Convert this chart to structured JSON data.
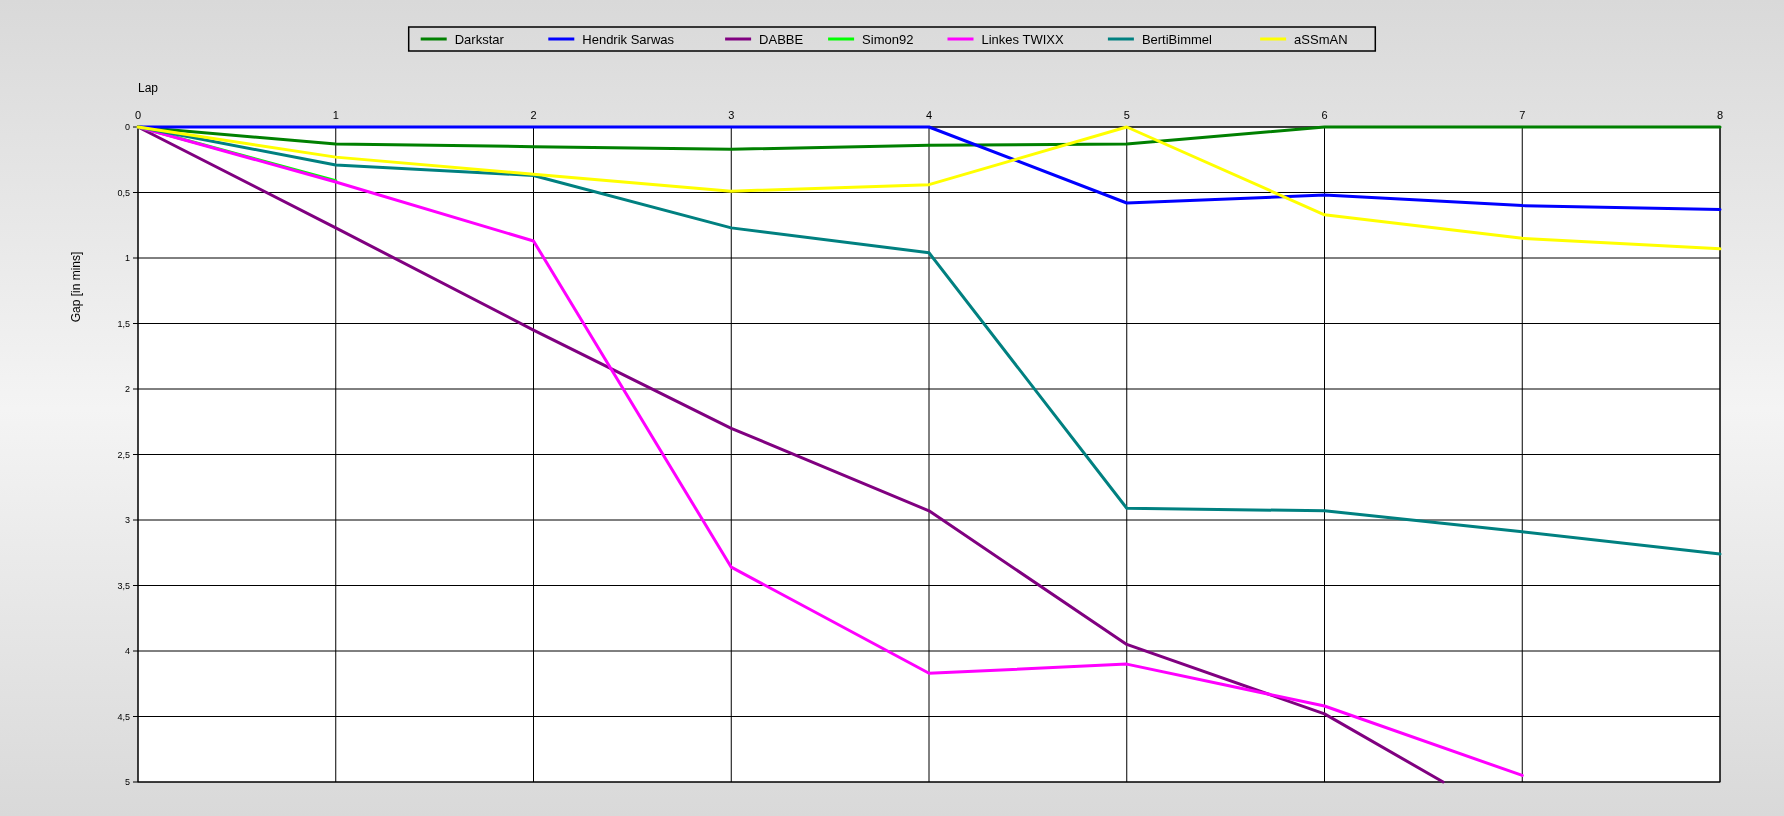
{
  "chart_data": {
    "type": "line",
    "xlabel": "Lap",
    "ylabel": "Gap [in mins]",
    "x": [
      0,
      1,
      2,
      3,
      4,
      5,
      6,
      7,
      8
    ],
    "xlim": [
      0,
      8
    ],
    "xticks": [
      0,
      1,
      2,
      3,
      4,
      5,
      6,
      7,
      8
    ],
    "ylim": [
      5,
      0
    ],
    "yticks": [
      0,
      {
        "value": 0.5,
        "label": "0,5"
      },
      1,
      {
        "value": 1.5,
        "label": "1,5"
      },
      2,
      {
        "value": 2.5,
        "label": "2,5"
      },
      3,
      {
        "value": 3.5,
        "label": "3,5"
      },
      4,
      {
        "value": 4.5,
        "label": "4,5"
      },
      5
    ],
    "grid": true,
    "legend": "top",
    "line_style": "solid",
    "marker": "none",
    "series": [
      {
        "name": "Darkstar",
        "color": "#008000",
        "values": [
          0,
          0.13,
          0.15,
          0.17,
          0.14,
          0.13,
          0,
          0,
          0
        ]
      },
      {
        "name": "Hendrik Sarwas",
        "color": "#0000ff",
        "values": [
          0,
          0,
          0,
          0,
          0,
          0.58,
          0.52,
          0.6,
          0.63
        ]
      },
      {
        "name": "DABBE",
        "color": "#800080",
        "x": [
          0,
          1,
          2,
          3,
          4,
          5,
          6,
          6.6
        ],
        "values": [
          0,
          0.77,
          1.55,
          2.3,
          2.93,
          3.95,
          4.48,
          5
        ]
      },
      {
        "name": "Simon92",
        "color": "#00ff00",
        "values": [
          0,
          0.41,
          null,
          null,
          null,
          null,
          null,
          null,
          null
        ]
      },
      {
        "name": "Linkes TWIXX",
        "color": "#ff00ff",
        "values": [
          0,
          0.42,
          0.87,
          3.36,
          4.17,
          4.1,
          4.42,
          4.95,
          null
        ]
      },
      {
        "name": "BertiBimmel",
        "color": "#008080",
        "values": [
          0,
          0.29,
          0.37,
          0.77,
          0.96,
          2.91,
          2.93,
          3.09,
          3.26
        ]
      },
      {
        "name": "aSSmAN",
        "color": "#ffff00",
        "values": [
          0,
          0.23,
          0.36,
          0.49,
          0.44,
          0,
          0.67,
          0.85,
          0.93
        ]
      }
    ]
  }
}
